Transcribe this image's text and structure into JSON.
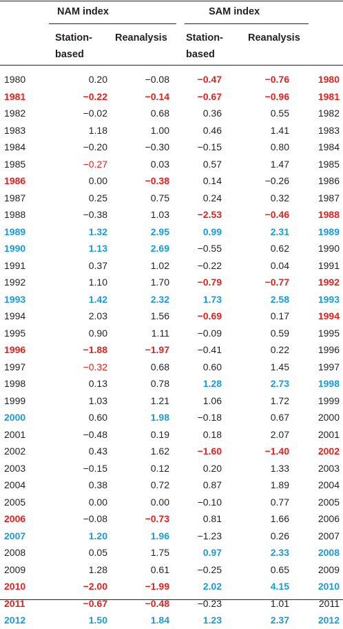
{
  "header": {
    "nam_group": "NAM index",
    "sam_group": "SAM index",
    "station_line1": "Station-",
    "station_line2": "based",
    "reanalysis": "Reanalysis"
  },
  "colors": {
    "text": "#231f20",
    "red": "#e0231f",
    "blue": "#1a9bd7"
  },
  "rows": [
    {
      "year": "1980",
      "y": "n",
      "v": [
        [
          "0.20",
          "n"
        ],
        [
          "−0.08",
          "n"
        ],
        [
          "−0.47",
          "R"
        ],
        [
          "−0.76",
          "R"
        ]
      ],
      "yr": "R"
    },
    {
      "year": "1981",
      "y": "R",
      "v": [
        [
          "−0.22",
          "R"
        ],
        [
          "−0.14",
          "R"
        ],
        [
          "−0.67",
          "R"
        ],
        [
          "−0.96",
          "R"
        ]
      ],
      "yr": "R"
    },
    {
      "year": "1982",
      "y": "n",
      "v": [
        [
          "−0.02",
          "n"
        ],
        [
          "0.68",
          "n"
        ],
        [
          "0.36",
          "n"
        ],
        [
          "0.55",
          "n"
        ]
      ],
      "yr": "n"
    },
    {
      "year": "1983",
      "y": "n",
      "v": [
        [
          "1.18",
          "n"
        ],
        [
          "1.00",
          "n"
        ],
        [
          "0.46",
          "n"
        ],
        [
          "1.41",
          "n"
        ]
      ],
      "yr": "n"
    },
    {
      "year": "1984",
      "y": "n",
      "v": [
        [
          "−0.20",
          "n"
        ],
        [
          "−0.30",
          "n"
        ],
        [
          "−0.15",
          "n"
        ],
        [
          "0.80",
          "n"
        ]
      ],
      "yr": "n"
    },
    {
      "year": "1985",
      "y": "n",
      "v": [
        [
          "−0.27",
          "r"
        ],
        [
          "0.03",
          "n"
        ],
        [
          "0.57",
          "n"
        ],
        [
          "1.47",
          "n"
        ]
      ],
      "yr": "n"
    },
    {
      "year": "1986",
      "y": "R",
      "v": [
        [
          "0.00",
          "n"
        ],
        [
          "−0.38",
          "R"
        ],
        [
          "0.14",
          "n"
        ],
        [
          "−0.26",
          "n"
        ]
      ],
      "yr": "n"
    },
    {
      "year": "1987",
      "y": "n",
      "v": [
        [
          "0.25",
          "n"
        ],
        [
          "0.75",
          "n"
        ],
        [
          "0.24",
          "n"
        ],
        [
          "0.32",
          "n"
        ]
      ],
      "yr": "n"
    },
    {
      "year": "1988",
      "y": "n",
      "v": [
        [
          "−0.38",
          "n"
        ],
        [
          "1.03",
          "n"
        ],
        [
          "−2.53",
          "R"
        ],
        [
          "−0.46",
          "R"
        ]
      ],
      "yr": "R"
    },
    {
      "year": "1989",
      "y": "B",
      "v": [
        [
          "1.32",
          "B"
        ],
        [
          "2.95",
          "B"
        ],
        [
          "0.99",
          "B"
        ],
        [
          "2.31",
          "B"
        ]
      ],
      "yr": "B"
    },
    {
      "year": "1990",
      "y": "B",
      "v": [
        [
          "1.13",
          "B"
        ],
        [
          "2.69",
          "B"
        ],
        [
          "−0.55",
          "n"
        ],
        [
          "0.62",
          "n"
        ]
      ],
      "yr": "n"
    },
    {
      "year": "1991",
      "y": "n",
      "v": [
        [
          "0.37",
          "n"
        ],
        [
          "1.02",
          "n"
        ],
        [
          "−0.22",
          "n"
        ],
        [
          "0.04",
          "n"
        ]
      ],
      "yr": "n"
    },
    {
      "year": "1992",
      "y": "n",
      "v": [
        [
          "1.10",
          "n"
        ],
        [
          "1.70",
          "n"
        ],
        [
          "−0.79",
          "R"
        ],
        [
          "−0.77",
          "R"
        ]
      ],
      "yr": "R"
    },
    {
      "year": "1993",
      "y": "B",
      "v": [
        [
          "1.42",
          "B"
        ],
        [
          "2.32",
          "B"
        ],
        [
          "1.73",
          "B"
        ],
        [
          "2.58",
          "B"
        ]
      ],
      "yr": "B"
    },
    {
      "year": "1994",
      "y": "n",
      "v": [
        [
          "2.03",
          "n"
        ],
        [
          "1.56",
          "n"
        ],
        [
          "−0.69",
          "R"
        ],
        [
          "0.17",
          "n"
        ]
      ],
      "yr": "R"
    },
    {
      "year": "1995",
      "y": "n",
      "v": [
        [
          "0.90",
          "n"
        ],
        [
          "1.11",
          "n"
        ],
        [
          "−0.09",
          "n"
        ],
        [
          "0.59",
          "n"
        ]
      ],
      "yr": "n"
    },
    {
      "year": "1996",
      "y": "R",
      "v": [
        [
          "−1.88",
          "R"
        ],
        [
          "−1.97",
          "R"
        ],
        [
          "−0.41",
          "n"
        ],
        [
          "0.22",
          "n"
        ]
      ],
      "yr": "n"
    },
    {
      "year": "1997",
      "y": "n",
      "v": [
        [
          "−0.32",
          "r"
        ],
        [
          "0.68",
          "n"
        ],
        [
          "0.60",
          "n"
        ],
        [
          "1.45",
          "n"
        ]
      ],
      "yr": "n"
    },
    {
      "year": "1998",
      "y": "n",
      "v": [
        [
          "0.13",
          "n"
        ],
        [
          "0.78",
          "n"
        ],
        [
          "1.28",
          "B"
        ],
        [
          "2.73",
          "B"
        ]
      ],
      "yr": "B"
    },
    {
      "year": "1999",
      "y": "n",
      "v": [
        [
          "1.03",
          "n"
        ],
        [
          "1.21",
          "n"
        ],
        [
          "1.06",
          "n"
        ],
        [
          "1.72",
          "n"
        ]
      ],
      "yr": "n"
    },
    {
      "year": "2000",
      "y": "B",
      "v": [
        [
          "0.60",
          "n"
        ],
        [
          "1.98",
          "B"
        ],
        [
          "−0.18",
          "n"
        ],
        [
          "0.67",
          "n"
        ]
      ],
      "yr": "n"
    },
    {
      "year": "2001",
      "y": "n",
      "v": [
        [
          "−0.48",
          "n"
        ],
        [
          "0.19",
          "n"
        ],
        [
          "0.18",
          "n"
        ],
        [
          "2.07",
          "n"
        ]
      ],
      "yr": "n"
    },
    {
      "year": "2002",
      "y": "n",
      "v": [
        [
          "0.43",
          "n"
        ],
        [
          "1.62",
          "n"
        ],
        [
          "−1.60",
          "R"
        ],
        [
          "−1.40",
          "R"
        ]
      ],
      "yr": "R"
    },
    {
      "year": "2003",
      "y": "n",
      "v": [
        [
          "−0.15",
          "n"
        ],
        [
          "0.12",
          "n"
        ],
        [
          "0.20",
          "n"
        ],
        [
          "1.33",
          "n"
        ]
      ],
      "yr": "n"
    },
    {
      "year": "2004",
      "y": "n",
      "v": [
        [
          "0.38",
          "n"
        ],
        [
          "0.72",
          "n"
        ],
        [
          "0.87",
          "n"
        ],
        [
          "1.89",
          "n"
        ]
      ],
      "yr": "n"
    },
    {
      "year": "2005",
      "y": "n",
      "v": [
        [
          "0.00",
          "n"
        ],
        [
          "0.00",
          "n"
        ],
        [
          "−0.10",
          "n"
        ],
        [
          "0.77",
          "n"
        ]
      ],
      "yr": "n"
    },
    {
      "year": "2006",
      "y": "R",
      "v": [
        [
          "−0.08",
          "n"
        ],
        [
          "−0.73",
          "R"
        ],
        [
          "0.81",
          "n"
        ],
        [
          "1.66",
          "n"
        ]
      ],
      "yr": "n"
    },
    {
      "year": "2007",
      "y": "B",
      "v": [
        [
          "1.20",
          "B"
        ],
        [
          "1.96",
          "B"
        ],
        [
          "−1.23",
          "n"
        ],
        [
          "0.26",
          "n"
        ]
      ],
      "yr": "n"
    },
    {
      "year": "2008",
      "y": "n",
      "v": [
        [
          "0.05",
          "n"
        ],
        [
          "1.75",
          "n"
        ],
        [
          "0.97",
          "B"
        ],
        [
          "2.33",
          "B"
        ]
      ],
      "yr": "B"
    },
    {
      "year": "2009",
      "y": "n",
      "v": [
        [
          "1.28",
          "n"
        ],
        [
          "0.61",
          "n"
        ],
        [
          "−0.25",
          "n"
        ],
        [
          "0.65",
          "n"
        ]
      ],
      "yr": "n"
    },
    {
      "year": "2010",
      "y": "R",
      "v": [
        [
          "−2.00",
          "R"
        ],
        [
          "−1.99",
          "R"
        ],
        [
          "2.02",
          "B"
        ],
        [
          "4.15",
          "B"
        ]
      ],
      "yr": "B"
    },
    {
      "year": "2011",
      "y": "R",
      "v": [
        [
          "−0.67",
          "R"
        ],
        [
          "−0.48",
          "R"
        ],
        [
          "−0.23",
          "n"
        ],
        [
          "1.01",
          "n"
        ]
      ],
      "yr": "n"
    },
    {
      "year": "2012",
      "y": "B",
      "v": [
        [
          "1.50",
          "B"
        ],
        [
          "1.84",
          "B"
        ],
        [
          "1.23",
          "B"
        ],
        [
          "2.37",
          "B"
        ]
      ],
      "yr": "B"
    }
  ]
}
